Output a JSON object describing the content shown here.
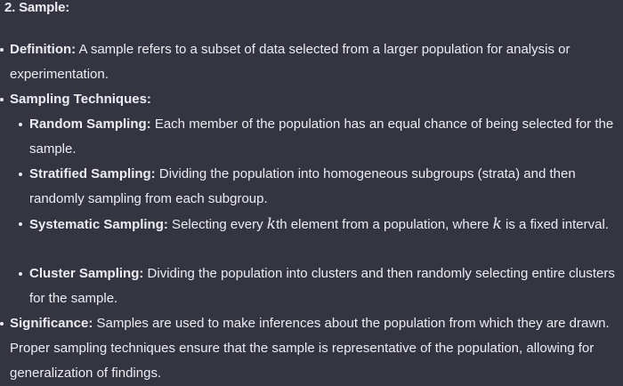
{
  "heading": "2. Sample:",
  "definition": {
    "term": "Definition:",
    "text": " A sample refers to a subset of data selected from a larger population for analysis or experimentation."
  },
  "techniques": {
    "term": "Sampling Techniques:",
    "items": [
      {
        "term": "Random Sampling:",
        "text": " Each member of the population has an equal chance of being selected for the sample."
      },
      {
        "term": "Stratified Sampling:",
        "text": " Dividing the population into homogeneous subgroups (strata) and then randomly sampling from each subgroup."
      },
      {
        "term": "Systematic Sampling:",
        "text_before": " Selecting every ",
        "var": "k",
        "text_mid": "th element from a population, where ",
        "var2": "k",
        "text_after": " is a fixed interval."
      },
      {
        "term": "Cluster Sampling:",
        "text": " Dividing the population into clusters and then randomly selecting entire clusters for the sample."
      }
    ]
  },
  "significance": {
    "term": "Significance:",
    "text": " Samples are used to make inferences about the population from which they are drawn. Proper sampling techniques ensure that the sample is representative of the population, allowing for generalization of findings."
  }
}
